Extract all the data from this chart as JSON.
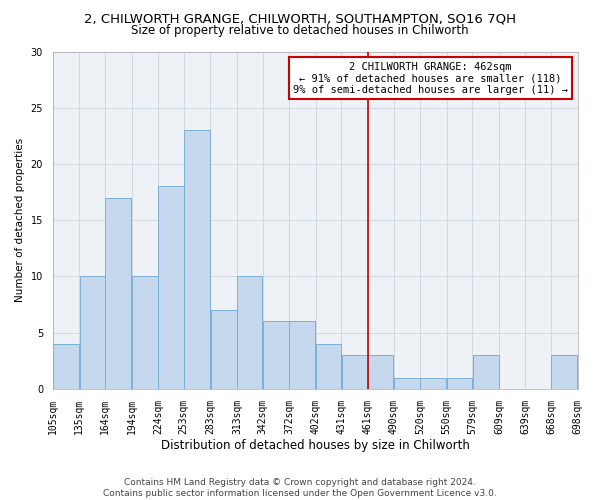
{
  "title": "2, CHILWORTH GRANGE, CHILWORTH, SOUTHAMPTON, SO16 7QH",
  "subtitle": "Size of property relative to detached houses in Chilworth",
  "xlabel": "Distribution of detached houses by size in Chilworth",
  "ylabel": "Number of detached properties",
  "bar_left_edges": [
    105,
    135,
    164,
    194,
    224,
    253,
    283,
    313,
    342,
    372,
    402,
    431,
    461,
    490,
    520,
    550,
    579,
    609,
    639,
    668
  ],
  "bar_widths": [
    30,
    29,
    30,
    30,
    29,
    30,
    30,
    29,
    30,
    30,
    29,
    30,
    29,
    30,
    30,
    29,
    30,
    30,
    29,
    30
  ],
  "bar_heights": [
    4,
    10,
    17,
    10,
    18,
    23,
    7,
    10,
    6,
    6,
    4,
    3,
    3,
    1,
    1,
    1,
    3,
    0,
    0,
    3
  ],
  "bar_color": "#c5d8ed",
  "bar_edgecolor": "#7aafd4",
  "tick_labels": [
    "105sqm",
    "135sqm",
    "164sqm",
    "194sqm",
    "224sqm",
    "253sqm",
    "283sqm",
    "313sqm",
    "342sqm",
    "372sqm",
    "402sqm",
    "431sqm",
    "461sqm",
    "490sqm",
    "520sqm",
    "550sqm",
    "579sqm",
    "609sqm",
    "639sqm",
    "668sqm",
    "698sqm"
  ],
  "red_line_x": 461,
  "red_line_color": "#cc0000",
  "annotation_title": "2 CHILWORTH GRANGE: 462sqm",
  "annotation_line1": "← 91% of detached houses are smaller (118)",
  "annotation_line2": "9% of semi-detached houses are larger (11) →",
  "ylim": [
    0,
    30
  ],
  "yticks": [
    0,
    5,
    10,
    15,
    20,
    25,
    30
  ],
  "grid_color": "#d0d8e0",
  "background_color": "#eef2f7",
  "footer": "Contains HM Land Registry data © Crown copyright and database right 2024.\nContains public sector information licensed under the Open Government Licence v3.0.",
  "title_fontsize": 9.5,
  "subtitle_fontsize": 8.5,
  "xlabel_fontsize": 8.5,
  "ylabel_fontsize": 7.5,
  "tick_fontsize": 7.0,
  "annot_fontsize": 7.5,
  "footer_fontsize": 6.5
}
